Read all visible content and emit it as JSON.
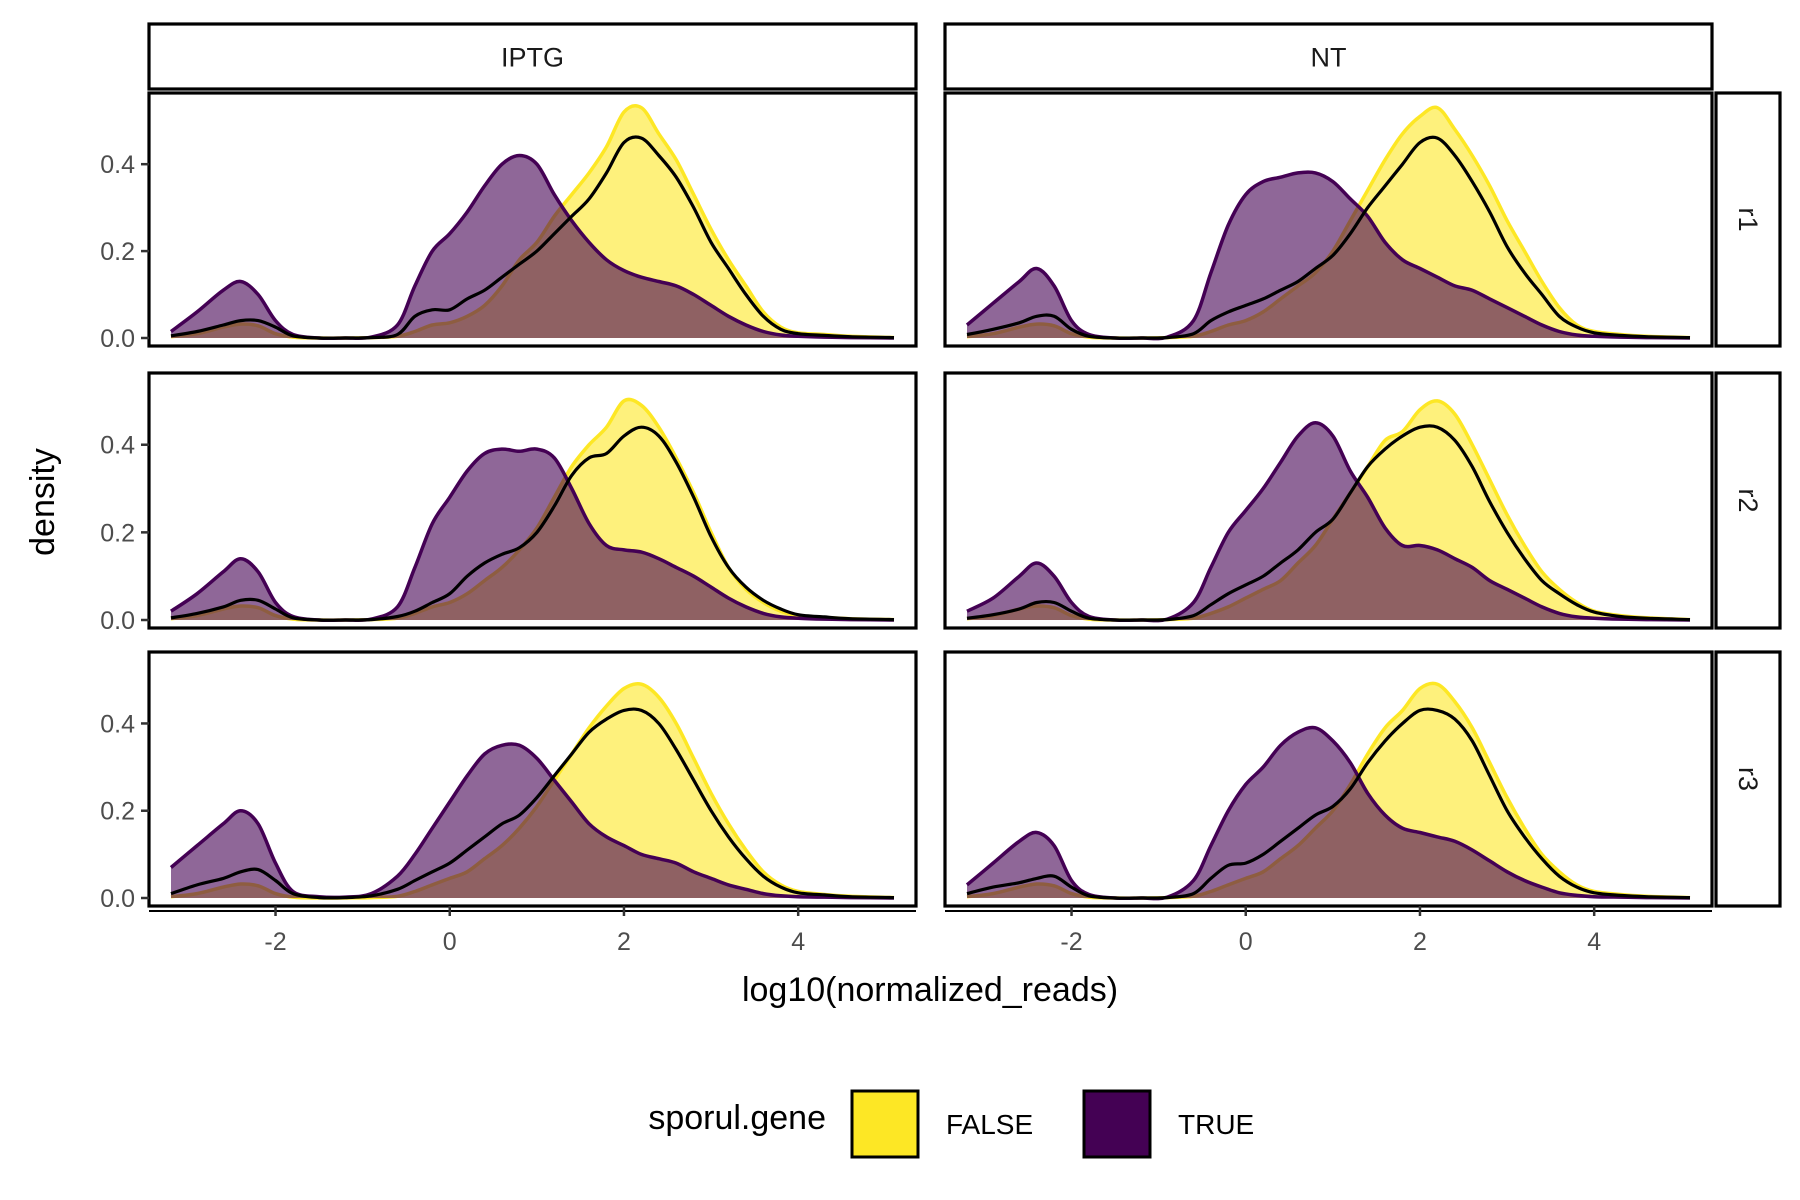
{
  "chart_data": {
    "type": "area",
    "subtype": "faceted density plot",
    "xlabel": "log10(normalized_reads)",
    "ylabel": "density",
    "xlim": [
      -3.2,
      5.1
    ],
    "ylim": [
      0,
      0.55
    ],
    "x_ticks": [
      -2,
      0,
      2,
      4
    ],
    "x_tick_labels": [
      "-2",
      "0",
      "2",
      "4"
    ],
    "y_ticks": [
      0,
      0.2,
      0.4
    ],
    "y_tick_labels": [
      "0.0",
      "0.2",
      "0.4"
    ],
    "grid": false,
    "legend": {
      "title": "sporul.gene",
      "position": "bottom",
      "entries": [
        {
          "label": "FALSE",
          "color": "#FDE725"
        },
        {
          "label": "TRUE",
          "color": "#440154"
        }
      ]
    },
    "colors": {
      "FALSE": "#FDE725",
      "TRUE": "#440154",
      "overall_line": "#000000",
      "fill_opacity": 0.6
    },
    "column_facets": [
      "IPTG",
      "NT"
    ],
    "row_facets": [
      "r1",
      "r2",
      "r3"
    ],
    "x": [
      -3.2,
      -2.9,
      -2.6,
      -2.4,
      -2.2,
      -2.0,
      -1.8,
      -1.5,
      -1.2,
      -0.9,
      -0.6,
      -0.4,
      -0.2,
      0.0,
      0.2,
      0.4,
      0.6,
      0.8,
      1.0,
      1.2,
      1.4,
      1.6,
      1.8,
      2.0,
      2.2,
      2.4,
      2.6,
      2.8,
      3.0,
      3.2,
      3.4,
      3.6,
      3.8,
      4.0,
      4.3,
      4.6,
      5.1
    ],
    "panels": [
      {
        "column": "IPTG",
        "row": "r1",
        "series": [
          {
            "name": "FALSE",
            "values": [
              0.003,
              0.01,
              0.025,
              0.032,
              0.028,
              0.01,
              0.002,
              0,
              0,
              0.001,
              0.004,
              0.015,
              0.03,
              0.035,
              0.05,
              0.075,
              0.12,
              0.18,
              0.22,
              0.28,
              0.33,
              0.38,
              0.44,
              0.52,
              0.53,
              0.47,
              0.41,
              0.33,
              0.25,
              0.18,
              0.12,
              0.06,
              0.025,
              0.012,
              0.008,
              0.004,
              0.001
            ]
          },
          {
            "name": "TRUE",
            "values": [
              0.015,
              0.06,
              0.11,
              0.13,
              0.1,
              0.04,
              0.008,
              0,
              0,
              0.002,
              0.03,
              0.12,
              0.2,
              0.24,
              0.29,
              0.35,
              0.4,
              0.42,
              0.4,
              0.33,
              0.27,
              0.22,
              0.18,
              0.155,
              0.14,
              0.13,
              0.12,
              0.1,
              0.075,
              0.05,
              0.03,
              0.015,
              0.007,
              0.004,
              0.002,
              0.001,
              0
            ]
          },
          {
            "name": "overall",
            "values": [
              0.005,
              0.015,
              0.03,
              0.04,
              0.04,
              0.025,
              0.005,
              0,
              0,
              0.001,
              0.008,
              0.05,
              0.065,
              0.065,
              0.09,
              0.11,
              0.14,
              0.17,
              0.2,
              0.24,
              0.28,
              0.32,
              0.38,
              0.45,
              0.46,
              0.42,
              0.37,
              0.3,
              0.22,
              0.16,
              0.1,
              0.05,
              0.02,
              0.01,
              0.006,
              0.003,
              0.001
            ]
          }
        ]
      },
      {
        "column": "IPTG",
        "row": "r2",
        "series": [
          {
            "name": "FALSE",
            "values": [
              0.003,
              0.01,
              0.025,
              0.032,
              0.028,
              0.01,
              0.002,
              0,
              0,
              0.001,
              0.004,
              0.015,
              0.03,
              0.04,
              0.06,
              0.09,
              0.12,
              0.16,
              0.21,
              0.28,
              0.35,
              0.4,
              0.44,
              0.5,
              0.49,
              0.44,
              0.37,
              0.29,
              0.2,
              0.12,
              0.07,
              0.04,
              0.02,
              0.01,
              0.006,
              0.003,
              0.001
            ]
          },
          {
            "name": "TRUE",
            "values": [
              0.02,
              0.06,
              0.11,
              0.14,
              0.11,
              0.04,
              0.008,
              0,
              0,
              0.002,
              0.03,
              0.12,
              0.22,
              0.28,
              0.34,
              0.38,
              0.39,
              0.385,
              0.39,
              0.37,
              0.3,
              0.22,
              0.17,
              0.16,
              0.155,
              0.14,
              0.12,
              0.1,
              0.075,
              0.05,
              0.03,
              0.015,
              0.007,
              0.004,
              0.002,
              0.001,
              0
            ]
          },
          {
            "name": "overall",
            "values": [
              0.005,
              0.015,
              0.03,
              0.045,
              0.045,
              0.025,
              0.005,
              0,
              0,
              0.001,
              0.008,
              0.02,
              0.04,
              0.06,
              0.1,
              0.13,
              0.15,
              0.165,
              0.2,
              0.26,
              0.33,
              0.37,
              0.38,
              0.42,
              0.44,
              0.42,
              0.36,
              0.28,
              0.19,
              0.12,
              0.075,
              0.045,
              0.025,
              0.012,
              0.007,
              0.003,
              0.001
            ]
          }
        ]
      },
      {
        "column": "IPTG",
        "row": "r3",
        "series": [
          {
            "name": "FALSE",
            "values": [
              0.003,
              0.01,
              0.025,
              0.032,
              0.028,
              0.01,
              0.002,
              0,
              0,
              0.001,
              0.004,
              0.015,
              0.03,
              0.045,
              0.06,
              0.09,
              0.12,
              0.16,
              0.21,
              0.27,
              0.33,
              0.39,
              0.44,
              0.48,
              0.49,
              0.46,
              0.4,
              0.32,
              0.24,
              0.17,
              0.11,
              0.06,
              0.03,
              0.015,
              0.008,
              0.004,
              0.001
            ]
          },
          {
            "name": "TRUE",
            "values": [
              0.07,
              0.12,
              0.17,
              0.2,
              0.17,
              0.08,
              0.015,
              0.003,
              0.002,
              0.01,
              0.05,
              0.1,
              0.16,
              0.22,
              0.28,
              0.33,
              0.35,
              0.35,
              0.32,
              0.27,
              0.22,
              0.17,
              0.14,
              0.12,
              0.1,
              0.09,
              0.08,
              0.06,
              0.045,
              0.03,
              0.02,
              0.01,
              0.005,
              0.003,
              0.002,
              0.001,
              0
            ]
          },
          {
            "name": "overall",
            "values": [
              0.01,
              0.03,
              0.045,
              0.06,
              0.065,
              0.04,
              0.01,
              0.001,
              0.001,
              0.005,
              0.02,
              0.04,
              0.06,
              0.08,
              0.11,
              0.14,
              0.17,
              0.19,
              0.23,
              0.28,
              0.33,
              0.38,
              0.41,
              0.43,
              0.43,
              0.4,
              0.34,
              0.27,
              0.2,
              0.14,
              0.09,
              0.05,
              0.025,
              0.012,
              0.007,
              0.003,
              0.001
            ]
          }
        ]
      },
      {
        "column": "NT",
        "row": "r1",
        "series": [
          {
            "name": "FALSE",
            "values": [
              0.003,
              0.01,
              0.025,
              0.032,
              0.028,
              0.01,
              0.002,
              0,
              0,
              0.001,
              0.004,
              0.015,
              0.03,
              0.04,
              0.06,
              0.09,
              0.12,
              0.15,
              0.2,
              0.27,
              0.34,
              0.41,
              0.47,
              0.51,
              0.53,
              0.48,
              0.42,
              0.35,
              0.27,
              0.2,
              0.13,
              0.07,
              0.03,
              0.015,
              0.008,
              0.004,
              0.001
            ]
          },
          {
            "name": "TRUE",
            "values": [
              0.03,
              0.08,
              0.13,
              0.16,
              0.12,
              0.04,
              0.008,
              0,
              0,
              0.002,
              0.04,
              0.15,
              0.26,
              0.33,
              0.36,
              0.37,
              0.38,
              0.38,
              0.36,
              0.32,
              0.28,
              0.22,
              0.18,
              0.16,
              0.14,
              0.12,
              0.11,
              0.09,
              0.07,
              0.05,
              0.03,
              0.015,
              0.007,
              0.004,
              0.002,
              0.001,
              0
            ]
          },
          {
            "name": "overall",
            "values": [
              0.008,
              0.02,
              0.035,
              0.05,
              0.05,
              0.02,
              0.004,
              0,
              0,
              0.001,
              0.01,
              0.04,
              0.06,
              0.075,
              0.09,
              0.11,
              0.13,
              0.16,
              0.19,
              0.24,
              0.3,
              0.35,
              0.4,
              0.45,
              0.46,
              0.42,
              0.36,
              0.29,
              0.21,
              0.15,
              0.1,
              0.05,
              0.025,
              0.012,
              0.006,
              0.003,
              0.001
            ]
          }
        ]
      },
      {
        "column": "NT",
        "row": "r2",
        "series": [
          {
            "name": "FALSE",
            "values": [
              0.003,
              0.01,
              0.025,
              0.032,
              0.028,
              0.01,
              0.002,
              0,
              0,
              0.001,
              0.004,
              0.015,
              0.03,
              0.05,
              0.07,
              0.09,
              0.13,
              0.17,
              0.23,
              0.29,
              0.35,
              0.41,
              0.43,
              0.48,
              0.5,
              0.47,
              0.4,
              0.32,
              0.24,
              0.17,
              0.11,
              0.07,
              0.04,
              0.02,
              0.01,
              0.005,
              0.001
            ]
          },
          {
            "name": "TRUE",
            "values": [
              0.02,
              0.05,
              0.1,
              0.13,
              0.1,
              0.04,
              0.008,
              0,
              0,
              0.002,
              0.04,
              0.12,
              0.2,
              0.25,
              0.3,
              0.36,
              0.42,
              0.45,
              0.42,
              0.34,
              0.28,
              0.21,
              0.17,
              0.17,
              0.16,
              0.14,
              0.12,
              0.09,
              0.07,
              0.05,
              0.03,
              0.015,
              0.007,
              0.004,
              0.002,
              0.001,
              0
            ]
          },
          {
            "name": "overall",
            "values": [
              0.004,
              0.012,
              0.025,
              0.04,
              0.04,
              0.02,
              0.004,
              0,
              0,
              0.001,
              0.01,
              0.035,
              0.06,
              0.08,
              0.1,
              0.13,
              0.16,
              0.2,
              0.23,
              0.29,
              0.35,
              0.39,
              0.42,
              0.44,
              0.44,
              0.41,
              0.35,
              0.27,
              0.2,
              0.14,
              0.09,
              0.06,
              0.035,
              0.018,
              0.008,
              0.004,
              0.001
            ]
          }
        ]
      },
      {
        "column": "NT",
        "row": "r3",
        "series": [
          {
            "name": "FALSE",
            "values": [
              0.003,
              0.01,
              0.025,
              0.032,
              0.028,
              0.01,
              0.002,
              0,
              0,
              0.001,
              0.004,
              0.015,
              0.03,
              0.045,
              0.06,
              0.09,
              0.12,
              0.16,
              0.2,
              0.26,
              0.33,
              0.39,
              0.43,
              0.48,
              0.49,
              0.45,
              0.39,
              0.31,
              0.23,
              0.16,
              0.1,
              0.06,
              0.03,
              0.015,
              0.008,
              0.004,
              0.001
            ]
          },
          {
            "name": "TRUE",
            "values": [
              0.03,
              0.08,
              0.13,
              0.15,
              0.12,
              0.04,
              0.008,
              0,
              0,
              0.002,
              0.04,
              0.12,
              0.2,
              0.26,
              0.3,
              0.35,
              0.38,
              0.39,
              0.36,
              0.31,
              0.24,
              0.19,
              0.16,
              0.15,
              0.14,
              0.13,
              0.11,
              0.085,
              0.06,
              0.04,
              0.025,
              0.012,
              0.006,
              0.003,
              0.002,
              0.001,
              0
            ]
          },
          {
            "name": "overall",
            "values": [
              0.01,
              0.025,
              0.035,
              0.045,
              0.05,
              0.025,
              0.005,
              0,
              0,
              0.001,
              0.01,
              0.045,
              0.075,
              0.08,
              0.1,
              0.13,
              0.16,
              0.19,
              0.21,
              0.25,
              0.31,
              0.36,
              0.4,
              0.43,
              0.43,
              0.41,
              0.36,
              0.28,
              0.2,
              0.14,
              0.09,
              0.05,
              0.025,
              0.012,
              0.006,
              0.003,
              0.001
            ]
          }
        ]
      }
    ]
  }
}
